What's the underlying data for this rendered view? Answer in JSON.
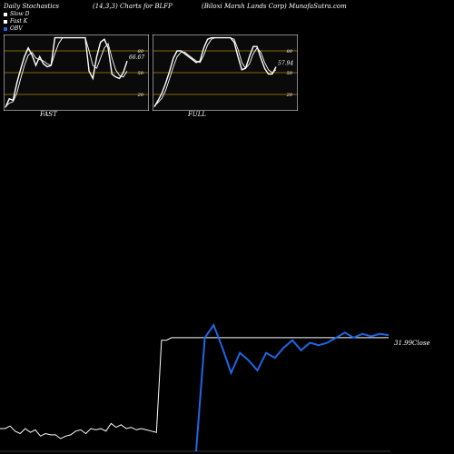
{
  "header": {
    "left": "Daily Stochastics",
    "center": "(14,3,3) Charts for BLFP",
    "right": "(Biloxi Marsh Lands Corp) MunafaSutra.com"
  },
  "legend": [
    {
      "label": "Slow D",
      "color": "#ffffff"
    },
    {
      "label": "Fast K",
      "color": "#ffffff"
    },
    {
      "label": "OBV",
      "color": "#1f66e5"
    }
  ],
  "colors": {
    "background": "#000000",
    "panel_bg": "#0a0a0a",
    "level_line": "#b8860b",
    "obv": "#1f66e5",
    "price": "#ffffff"
  },
  "chart_data": [
    {
      "type": "line",
      "name": "FAST",
      "title": "FAST",
      "ylim": [
        0,
        100
      ],
      "levels": [
        80,
        50,
        20
      ],
      "level_labels": [
        "80",
        "50",
        "20"
      ],
      "series": [
        {
          "name": "Fast K",
          "values": [
            2,
            14,
            12,
            36,
            55,
            72,
            84,
            74,
            60,
            72,
            62,
            58,
            60,
            98,
            98,
            98,
            98,
            98,
            98,
            98,
            98,
            98,
            52,
            42,
            72,
            92,
            96,
            84,
            48,
            44,
            42,
            50,
            66
          ]
        },
        {
          "name": "Slow D",
          "values": [
            3,
            8,
            10,
            22,
            42,
            60,
            74,
            78,
            70,
            68,
            66,
            62,
            60,
            76,
            90,
            98,
            98,
            98,
            98,
            98,
            98,
            98,
            80,
            60,
            56,
            70,
            84,
            90,
            70,
            54,
            46,
            44,
            52
          ]
        }
      ],
      "last_value_label": "66.67"
    },
    {
      "type": "line",
      "name": "FULL",
      "title": "FULL",
      "ylim": [
        0,
        100
      ],
      "levels": [
        80,
        50,
        20
      ],
      "level_labels": [
        "80",
        "50",
        "20"
      ],
      "series": [
        {
          "name": "Fast K",
          "values": [
            3,
            12,
            22,
            36,
            52,
            70,
            80,
            80,
            76,
            72,
            68,
            64,
            66,
            84,
            96,
            98,
            98,
            98,
            98,
            98,
            98,
            92,
            72,
            54,
            56,
            72,
            86,
            86,
            70,
            56,
            48,
            48,
            58
          ]
        },
        {
          "name": "Slow D",
          "values": [
            4,
            9,
            15,
            26,
            42,
            58,
            72,
            78,
            78,
            74,
            70,
            66,
            64,
            74,
            88,
            96,
            98,
            98,
            98,
            98,
            98,
            96,
            82,
            64,
            56,
            62,
            76,
            84,
            78,
            64,
            54,
            50,
            54
          ]
        }
      ],
      "last_value_label": "57.94"
    },
    {
      "type": "line",
      "name": "OBV",
      "price_label": "31.99",
      "price_suffix": "Close",
      "price_series": {
        "name": "Close",
        "values": [
          0.18,
          0.18,
          0.2,
          0.16,
          0.14,
          0.18,
          0.15,
          0.17,
          0.12,
          0.14,
          0.13,
          0.13,
          0.1,
          0.12,
          0.13,
          0.16,
          0.17,
          0.14,
          0.18,
          0.17,
          0.18,
          0.16,
          0.22,
          0.19,
          0.21,
          0.18,
          0.19,
          0.17,
          0.18,
          0.17,
          0.16,
          0.15,
          0.88,
          0.88,
          0.9,
          0.9,
          0.9,
          0.9,
          0.9,
          0.9,
          0.9,
          0.9,
          0.9,
          0.9,
          0.9,
          0.9,
          0.9,
          0.9,
          0.9,
          0.9,
          0.9,
          0.9,
          0.9,
          0.9,
          0.9,
          0.9,
          0.9,
          0.9,
          0.9,
          0.9,
          0.9,
          0.9,
          0.9,
          0.9,
          0.9,
          0.9,
          0.9,
          0.9,
          0.9,
          0.9,
          0.9,
          0.9,
          0.9,
          0.9,
          0.9,
          0.9,
          0.9,
          0.9
        ]
      },
      "obv_series": {
        "name": "OBV",
        "values": [
          0.0,
          0.9,
          1.0,
          0.82,
          0.62,
          0.78,
          0.72,
          0.64,
          0.78,
          0.74,
          0.82,
          0.88,
          0.8,
          0.86,
          0.84,
          0.86,
          0.9,
          0.94,
          0.9,
          0.93,
          0.91,
          0.93,
          0.92
        ]
      }
    }
  ]
}
